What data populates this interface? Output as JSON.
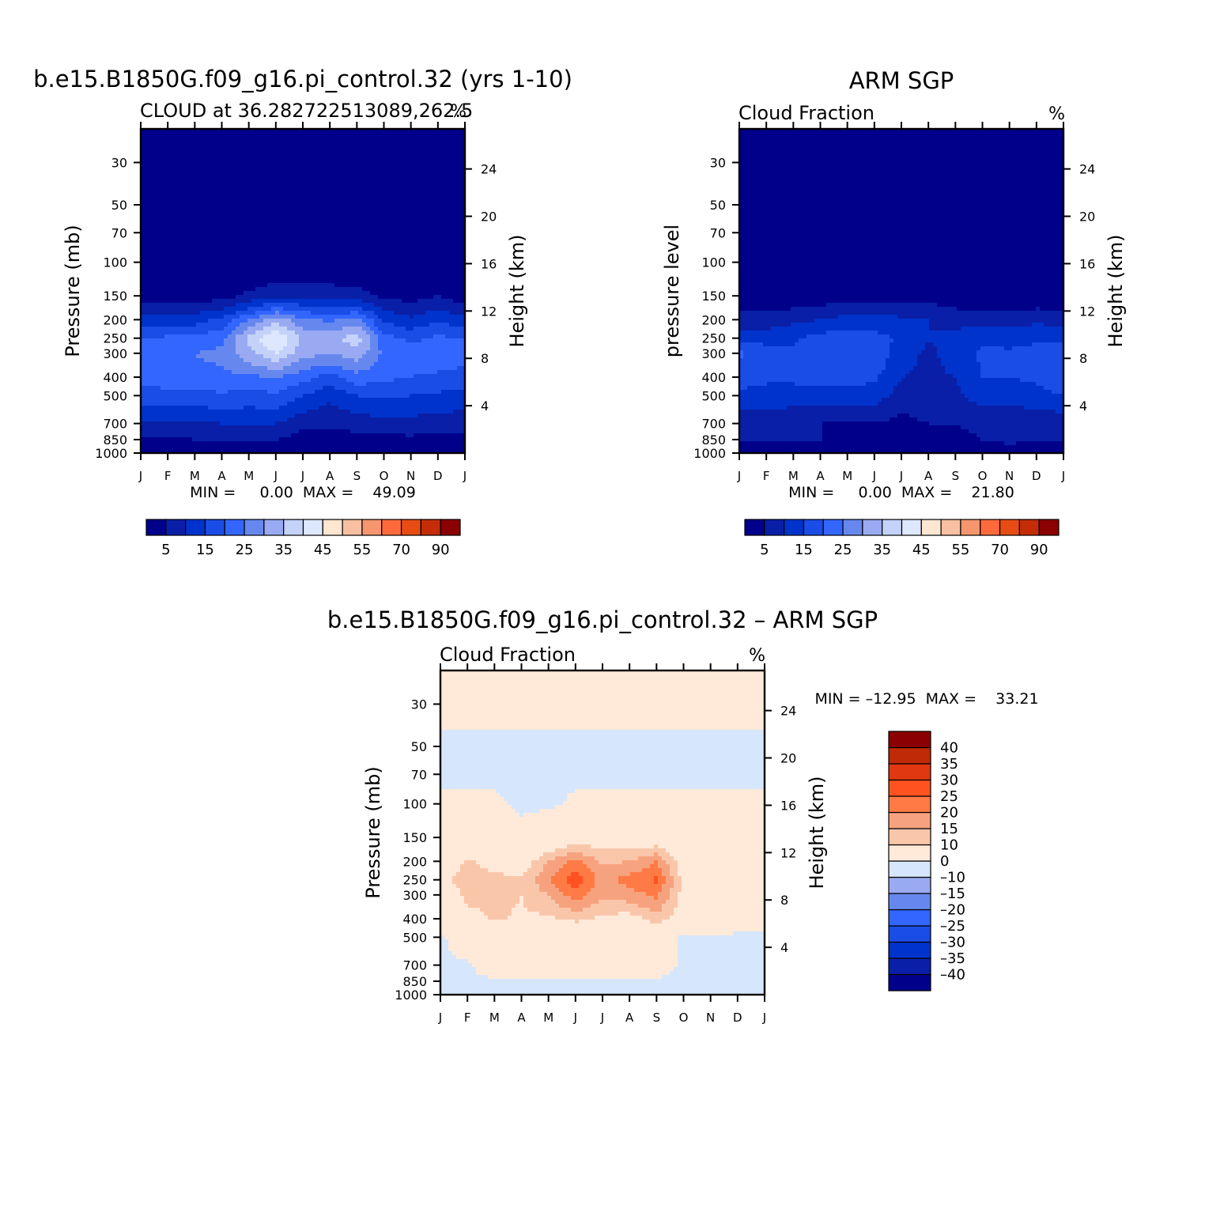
{
  "chart_data": [
    {
      "type": "heatmap",
      "id": "model",
      "title": "b.e15.B1850G.f09_g16.pi_control.32 (yrs 1-10)",
      "left_string": "CLOUD at 36.282722513089,262.5",
      "right_string": "%",
      "ylabel": "Pressure  (mb)",
      "ylabel_right": "Height  (km)",
      "x_tick_labels": [
        "J",
        "F",
        "M",
        "A",
        "M",
        "J",
        "J",
        "A",
        "S",
        "O",
        "N",
        "D",
        "J"
      ],
      "y_ticks": [
        30,
        50,
        70,
        100,
        150,
        200,
        250,
        300,
        400,
        500,
        700,
        850,
        1000
      ],
      "y_scale": "log",
      "y_range": [
        1000,
        20
      ],
      "height_ticks_km": [
        4,
        8,
        12,
        16,
        20,
        24
      ],
      "stats": "MIN =     0.00  MAX =    49.09",
      "colorbar": {
        "orientation": "horizontal",
        "levels": [
          5,
          10,
          15,
          20,
          25,
          30,
          35,
          40,
          45,
          50,
          55,
          60,
          70,
          80,
          90
        ],
        "tick_labels": [
          "5",
          "15",
          "25",
          "35",
          "45",
          "55",
          "70",
          "90"
        ],
        "colors": [
          "#00008b",
          "#0a1fa8",
          "#0033cc",
          "#1a4ce6",
          "#3366ff",
          "#6688ee",
          "#99aaf2",
          "#c4d2fa",
          "#dde8ff",
          "#ffe6d1",
          "#f9bfa2",
          "#f5966e",
          "#ff6a3c",
          "#e64c14",
          "#c42d08",
          "#8b0000"
        ]
      },
      "grid": {
        "months": [
          0,
          1,
          2,
          3,
          4,
          5,
          6,
          7,
          8,
          9,
          10,
          11,
          12
        ],
        "pressure": [
          20,
          30,
          50,
          70,
          100,
          150,
          200,
          250,
          300,
          400,
          500,
          700,
          850,
          950,
          1000
        ],
        "values": [
          [
            0,
            0,
            0,
            0,
            0,
            0,
            0,
            0,
            0,
            0,
            0,
            0,
            0
          ],
          [
            0,
            0,
            0,
            0,
            0,
            0,
            0,
            0,
            0,
            0,
            0,
            0,
            0
          ],
          [
            0,
            0,
            0,
            0,
            0,
            0,
            0,
            0,
            0,
            0,
            0,
            0,
            0
          ],
          [
            0,
            0,
            0,
            0,
            0,
            0,
            0,
            0,
            0,
            0,
            0,
            0,
            0
          ],
          [
            0,
            0,
            0,
            0,
            0,
            0,
            0,
            0,
            0,
            0,
            0,
            0,
            0
          ],
          [
            2,
            2,
            2,
            3,
            6,
            9,
            9,
            8,
            7,
            4,
            3,
            5,
            2
          ],
          [
            12,
            13,
            13,
            16,
            25,
            33,
            26,
            24,
            27,
            14,
            11,
            14,
            12
          ],
          [
            20,
            21,
            21,
            24,
            36,
            46,
            34,
            33,
            38,
            22,
            19,
            21,
            20
          ],
          [
            24,
            25,
            25,
            26,
            33,
            40,
            32,
            30,
            33,
            24,
            22,
            23,
            22
          ],
          [
            22,
            23,
            24,
            24,
            24,
            25,
            22,
            18,
            23,
            21,
            20,
            19,
            18
          ],
          [
            17,
            18,
            18,
            19,
            18,
            19,
            15,
            11,
            15,
            16,
            15,
            14,
            13
          ],
          [
            9,
            9,
            9,
            10,
            10,
            10,
            6,
            6,
            7,
            8,
            8,
            7,
            7
          ],
          [
            4,
            4,
            5,
            5,
            5,
            5,
            3,
            3,
            3,
            3,
            4,
            3,
            3
          ],
          [
            2,
            2,
            2,
            2,
            2,
            2,
            1,
            1,
            1,
            1,
            1,
            1,
            1
          ],
          [
            0,
            0,
            0,
            0,
            0,
            0,
            0,
            0,
            0,
            0,
            0,
            0,
            0
          ]
        ]
      }
    },
    {
      "type": "heatmap",
      "id": "obs",
      "title": "ARM SGP",
      "left_string": "Cloud Fraction",
      "right_string": "%",
      "ylabel": "pressure  level",
      "ylabel_right": "Height  (km)",
      "x_tick_labels": [
        "J",
        "F",
        "M",
        "A",
        "M",
        "J",
        "J",
        "A",
        "S",
        "O",
        "N",
        "D",
        "J"
      ],
      "y_ticks": [
        30,
        50,
        70,
        100,
        150,
        200,
        250,
        300,
        400,
        500,
        700,
        850,
        1000
      ],
      "y_scale": "log",
      "y_range": [
        1000,
        20
      ],
      "height_ticks_km": [
        4,
        8,
        12,
        16,
        20,
        24
      ],
      "stats": "MIN =     0.00  MAX =    21.80",
      "colorbar": {
        "orientation": "horizontal",
        "levels": [
          5,
          10,
          15,
          20,
          25,
          30,
          35,
          40,
          45,
          50,
          55,
          60,
          70,
          80,
          90
        ],
        "tick_labels": [
          "5",
          "15",
          "25",
          "35",
          "45",
          "55",
          "70",
          "90"
        ],
        "colors": [
          "#00008b",
          "#0a1fa8",
          "#0033cc",
          "#1a4ce6",
          "#3366ff",
          "#6688ee",
          "#99aaf2",
          "#c4d2fa",
          "#dde8ff",
          "#ffe6d1",
          "#f9bfa2",
          "#f5966e",
          "#ff6a3c",
          "#e64c14",
          "#c42d08",
          "#8b0000"
        ]
      },
      "grid": {
        "months": [
          0,
          1,
          2,
          3,
          4,
          5,
          6,
          7,
          8,
          9,
          10,
          11,
          12
        ],
        "pressure": [
          20,
          30,
          50,
          70,
          100,
          150,
          200,
          250,
          300,
          400,
          500,
          700,
          850,
          950,
          1000
        ],
        "values": [
          [
            0,
            0,
            0,
            0,
            0,
            0,
            0,
            0,
            0,
            0,
            0,
            0,
            0
          ],
          [
            0,
            0,
            0,
            0,
            0,
            0,
            0,
            0,
            0,
            0,
            0,
            0,
            0
          ],
          [
            0,
            0,
            0,
            0,
            0,
            0,
            0,
            0,
            0,
            0,
            0,
            0,
            0
          ],
          [
            0,
            0,
            0,
            0,
            0,
            0,
            0,
            0,
            0,
            0,
            0,
            0,
            0
          ],
          [
            0,
            0,
            0,
            0,
            0,
            0,
            0,
            0,
            0,
            0,
            0,
            0,
            0
          ],
          [
            1,
            1,
            1,
            2,
            3,
            3,
            3,
            3,
            2,
            1,
            1,
            1,
            1
          ],
          [
            8,
            7,
            9,
            10,
            12,
            12,
            11,
            10,
            8,
            8,
            8,
            9,
            8
          ],
          [
            12,
            13,
            14,
            17,
            18,
            17,
            14,
            10,
            12,
            14,
            13,
            14,
            13
          ],
          [
            21,
            18,
            16,
            18,
            20,
            19,
            12,
            9,
            12,
            16,
            16,
            17,
            20
          ],
          [
            17,
            16,
            16,
            17,
            17,
            16,
            10,
            9,
            10,
            15,
            15,
            16,
            19
          ],
          [
            14,
            13,
            13,
            13,
            13,
            12,
            8,
            9,
            9,
            12,
            12,
            13,
            15
          ],
          [
            6,
            6,
            5,
            5,
            4,
            5,
            3,
            5,
            5,
            6,
            6,
            6,
            6
          ],
          [
            5,
            6,
            5,
            5,
            5,
            5,
            3,
            3,
            4,
            5,
            6,
            5,
            5
          ],
          [
            2,
            3,
            3,
            3,
            3,
            2,
            1,
            1,
            2,
            3,
            4,
            3,
            2
          ],
          [
            0,
            0,
            0,
            0,
            0,
            0,
            0,
            0,
            0,
            0,
            0,
            0,
            0
          ]
        ]
      }
    },
    {
      "type": "heatmap",
      "id": "diff",
      "title": "b.e15.B1850G.f09_g16.pi_control.32 – ARM SGP",
      "left_string": "Cloud Fraction",
      "right_string": "%",
      "ylabel": "Pressure  (mb)",
      "ylabel_right": "Height  (km)",
      "x_tick_labels": [
        "J",
        "F",
        "M",
        "A",
        "M",
        "J",
        "J",
        "A",
        "S",
        "O",
        "N",
        "D",
        "J"
      ],
      "y_ticks": [
        30,
        50,
        70,
        100,
        150,
        200,
        250,
        300,
        400,
        500,
        700,
        850,
        1000
      ],
      "y_scale": "log",
      "y_range": [
        1000,
        20
      ],
      "height_ticks_km": [
        4,
        8,
        12,
        16,
        20,
        24
      ],
      "stats": "MIN = –12.95  MAX =    33.21",
      "colorbar": {
        "orientation": "vertical",
        "levels": [
          -40,
          -35,
          -30,
          -25,
          -20,
          -15,
          -10,
          0,
          10,
          15,
          20,
          25,
          30,
          35,
          40
        ],
        "tick_labels": [
          "–40",
          "–35",
          "–30",
          "–25",
          "–20",
          "–15",
          "–10",
          "0",
          "10",
          "15",
          "20",
          "25",
          "30",
          "35",
          "40"
        ],
        "colors": [
          "#00008b",
          "#0a1fa8",
          "#0033cc",
          "#1a4ce6",
          "#3366ff",
          "#6688ee",
          "#99aaf2",
          "#d6e6fc",
          "#ffe9d9",
          "#fac6aa",
          "#f7a27e",
          "#ff7a45",
          "#ff5220",
          "#e03810",
          "#c02a06",
          "#8b0000"
        ]
      },
      "grid": {
        "months": [
          0,
          1,
          2,
          3,
          4,
          5,
          6,
          7,
          8,
          9,
          10,
          11,
          12
        ],
        "pressure": [
          20,
          30,
          50,
          70,
          100,
          150,
          200,
          250,
          300,
          400,
          500,
          700,
          850,
          950,
          1000
        ],
        "values": [
          [
            0.5,
            0.5,
            0.5,
            0.5,
            0.5,
            0.5,
            0.5,
            0.5,
            0.5,
            0.5,
            0.5,
            0.5,
            0.5
          ],
          [
            0.5,
            0.5,
            0.5,
            0.5,
            0.5,
            0.5,
            0.5,
            0.5,
            0.5,
            0.5,
            0.5,
            0.5,
            0.5
          ],
          [
            -0.5,
            -0.5,
            -0.5,
            -0.5,
            -0.5,
            -0.5,
            -0.5,
            -0.5,
            -0.5,
            -0.5,
            -0.5,
            -0.5,
            -0.5
          ],
          [
            -0.5,
            -0.5,
            -0.5,
            -0.5,
            -0.5,
            -0.5,
            -0.5,
            -0.5,
            -0.5,
            -0.5,
            -0.5,
            -0.5,
            -0.5
          ],
          [
            0.5,
            0.5,
            0.5,
            -0.5,
            -0.5,
            0.5,
            0.5,
            0.5,
            0.5,
            0.5,
            0.5,
            0.5,
            0.5
          ],
          [
            1,
            1,
            1,
            1,
            3,
            6,
            6,
            5,
            5,
            3,
            2,
            4,
            1
          ],
          [
            4,
            11,
            7,
            6,
            15,
            22,
            14,
            15,
            20,
            6,
            3,
            5,
            4
          ],
          [
            8,
            13,
            12,
            11,
            20,
            28,
            18,
            22,
            26,
            8,
            6,
            7,
            7
          ],
          [
            3,
            12,
            12,
            10,
            15,
            23,
            16,
            18,
            21,
            8,
            6,
            6,
            2
          ],
          [
            5,
            7,
            11,
            9,
            9,
            11,
            9,
            7,
            13,
            6,
            5,
            3,
            3
          ],
          [
            -1,
            4,
            4,
            4,
            4,
            5,
            4,
            1,
            3,
            -1,
            -1,
            -1,
            -1
          ],
          [
            -1,
            -1,
            4,
            4,
            3,
            4,
            3,
            3,
            3,
            -1,
            -1,
            -1,
            -1
          ],
          [
            -1,
            -1,
            -1,
            -1,
            -1,
            -1,
            -1,
            -1,
            -1,
            -1,
            -1,
            -1,
            -1
          ],
          [
            -1,
            -1,
            -1,
            -1,
            -1,
            -1,
            -1,
            -1,
            -1,
            -1,
            -1,
            -2,
            -1
          ],
          [
            -1,
            -1,
            -1,
            -1,
            -1,
            -1,
            -1,
            -1,
            -1,
            -1,
            -1,
            -1,
            -1
          ]
        ]
      }
    }
  ]
}
